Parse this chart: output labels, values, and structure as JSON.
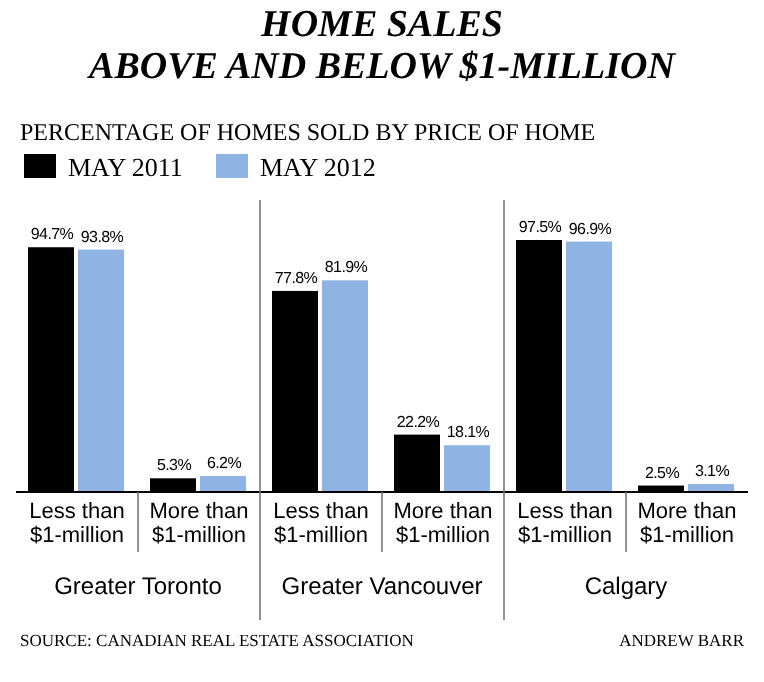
{
  "chart_data": {
    "type": "bar",
    "title": "HOME SALES\nABOVE AND BELOW $1-MILLION",
    "subtitle": "PERCENTAGE OF HOMES SOLD BY PRICE OF HOME",
    "categories": [
      "Less than\n$1-million",
      "More than\n$1-million",
      "Less than\n$1-million",
      "More than\n$1-million",
      "Less than\n$1-million",
      "More than\n$1-million"
    ],
    "series": [
      {
        "name": "MAY 2011",
        "color": "#000000",
        "values": [
          94.7,
          5.3,
          77.8,
          22.2,
          97.5,
          2.5
        ],
        "value_labels": [
          "94.7%",
          "5.3%",
          "77.8%",
          "22.2%",
          "97.5%",
          "2.5%"
        ]
      },
      {
        "name": "MAY 2012",
        "color": "#8fb4e3",
        "values": [
          93.8,
          6.2,
          81.9,
          18.1,
          96.9,
          3.1
        ],
        "value_labels": [
          "93.8%",
          "6.2%",
          "81.9%",
          "18.1%",
          "96.9%",
          "3.1%"
        ]
      }
    ],
    "annotations": [
      "Greater Toronto",
      "Greater Vancouver",
      "Calgary",
      "SOURCE: CANADIAN REAL ESTATE ASSOCIATION",
      "ANDREW BARR"
    ],
    "legend": "top left"
  }
}
